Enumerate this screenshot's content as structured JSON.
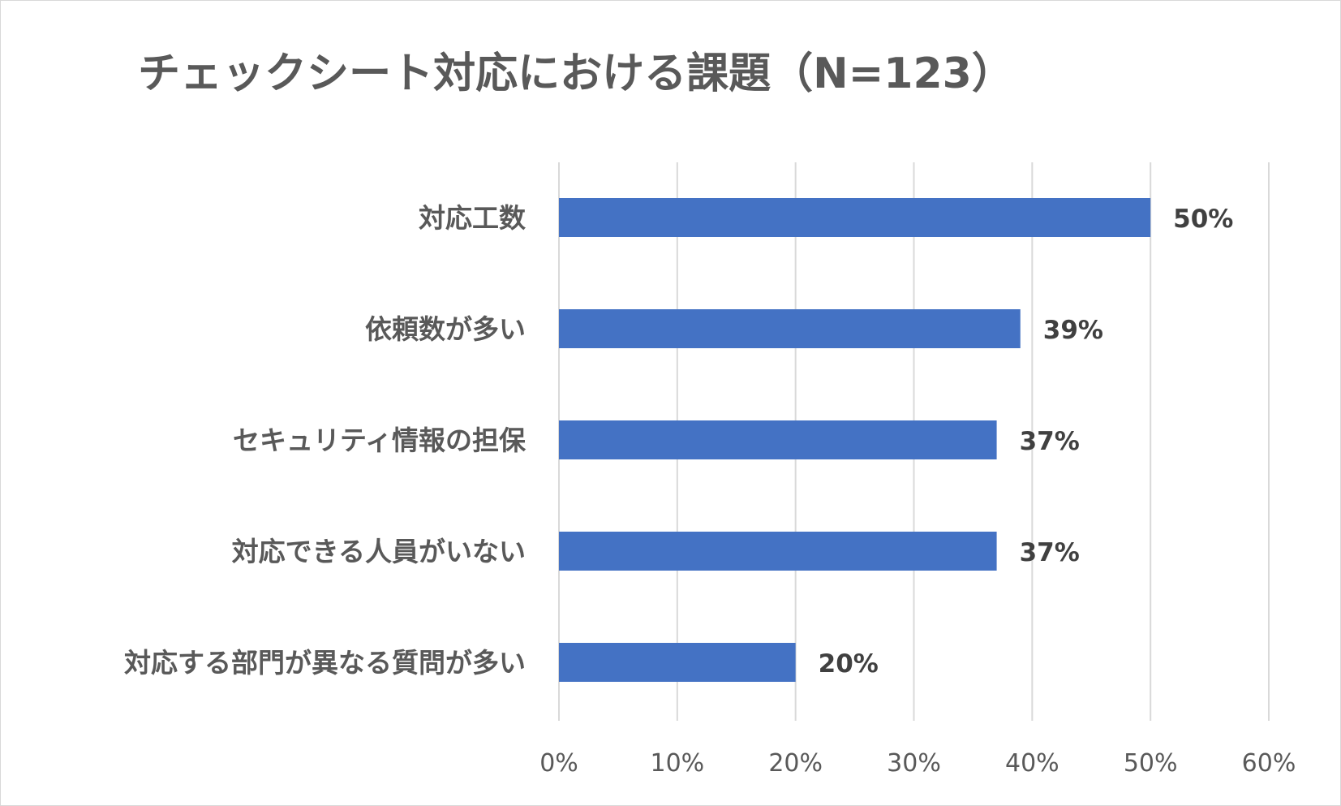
{
  "chart_data": {
    "type": "bar",
    "orientation": "horizontal",
    "title": "チェックシート対応における課題（N=123）",
    "categories": [
      "対応工数",
      "依頼数が多い",
      "セキュリティ情報の担保",
      "対応できる人員がいない",
      "対応する部門が異なる質問が多い"
    ],
    "values": [
      50,
      39,
      37,
      37,
      20
    ],
    "value_labels": [
      "50%",
      "39%",
      "37%",
      "37%",
      "20%"
    ],
    "xlim": [
      0,
      60
    ],
    "x_ticks": [
      0,
      10,
      20,
      30,
      40,
      50,
      60
    ],
    "x_tick_labels": [
      "0%",
      "10%",
      "20%",
      "30%",
      "40%",
      "50%",
      "60%"
    ],
    "xlabel": "",
    "ylabel": "",
    "grid": true,
    "bar_color": "#4472c4",
    "grid_color": "#d9d9d9"
  }
}
